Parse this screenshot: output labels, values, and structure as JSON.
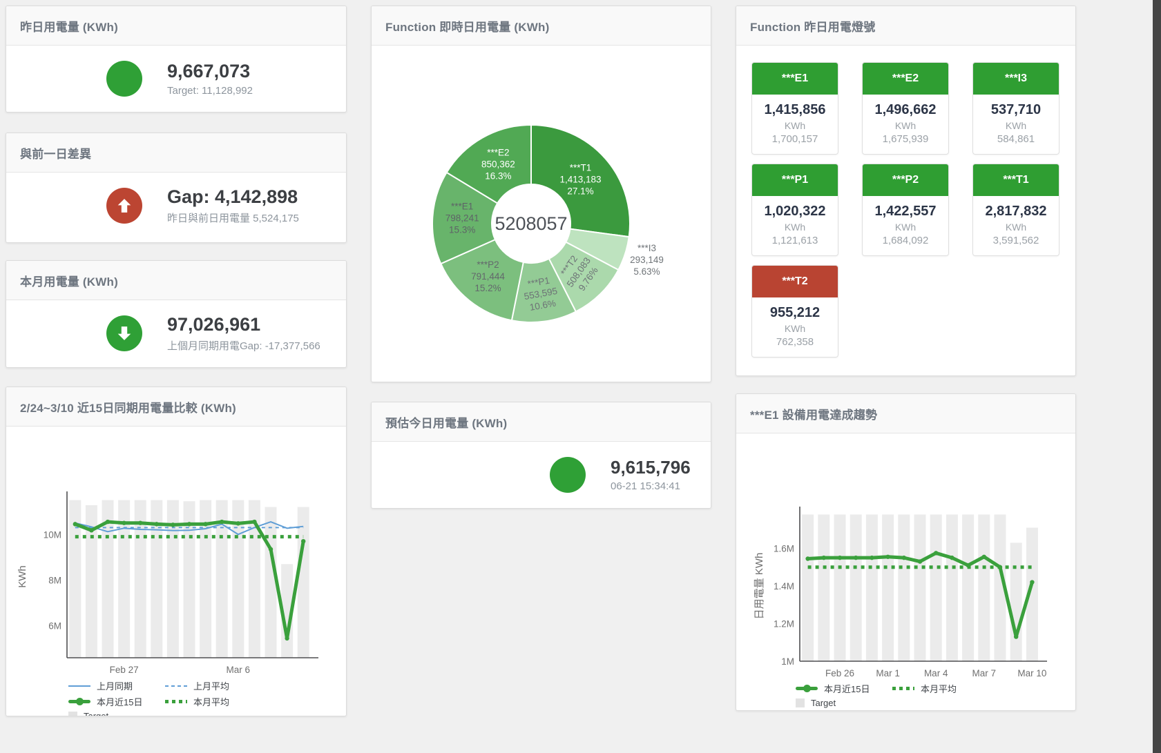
{
  "panels": {
    "yesterday_usage": {
      "title": "昨日用電量 (KWh)",
      "value": "9,667,073",
      "subtitle": "Target: 11,128,992",
      "icon": "green-circle",
      "icon_color": "#2fa036"
    },
    "prev_day_gap": {
      "title": "與前一日差異",
      "value": "Gap: 4,142,898",
      "subtitle": "昨日與前日用電量 5,524,175",
      "icon": "red-circle-up-arrow",
      "icon_color": "#bc4532"
    },
    "month_usage": {
      "title": "本月用電量 (KWh)",
      "value": "97,026,961",
      "subtitle": "上個月同期用電Gap: -17,377,566",
      "icon": "green-circle-down-arrow",
      "icon_color": "#2fa036"
    },
    "today_estimate": {
      "title": "預估今日用電量 (KWh)",
      "value": "9,615,796",
      "subtitle": "06-21 15:34:41",
      "icon": "green-circle",
      "icon_color": "#2fa036"
    },
    "realtime_donut": {
      "title": "Function 即時日用電量 (KWh)"
    },
    "lights": {
      "title": "Function 昨日用電燈號",
      "unit_label": "KWh",
      "green": "#2f9e32",
      "red": "#b94432",
      "tiles": [
        {
          "name": "***E1",
          "value": "1,415,856",
          "target": "1,700,157",
          "status": "green"
        },
        {
          "name": "***E2",
          "value": "1,496,662",
          "target": "1,675,939",
          "status": "green"
        },
        {
          "name": "***I3",
          "value": "537,710",
          "target": "584,861",
          "status": "green"
        },
        {
          "name": "***P1",
          "value": "1,020,322",
          "target": "1,121,613",
          "status": "green"
        },
        {
          "name": "***P2",
          "value": "1,422,557",
          "target": "1,684,092",
          "status": "green"
        },
        {
          "name": "***T1",
          "value": "2,817,832",
          "target": "3,591,562",
          "status": "green"
        },
        {
          "name": "***T2",
          "value": "955,212",
          "target": "762,358",
          "status": "red"
        }
      ]
    },
    "compare_15d": {
      "title": "2/24~3/10 近15日同期用電量比較 (KWh)"
    },
    "e1_trend": {
      "title": "***E1 設備用電達成趨勢"
    }
  },
  "chart_data": [
    {
      "id": "realtime_donut",
      "type": "pie",
      "title": "Function 即時日用電量 (KWh)",
      "center_total": "5208057",
      "slices": [
        {
          "label": "***T1",
          "value": 1413183,
          "display": "1,413,183",
          "pct": "27.1%",
          "color": "#3b9a3e",
          "text_color": "#ffffff",
          "label_r": 95,
          "rotate": 0,
          "outside": false
        },
        {
          "label": "***I3",
          "value": 293149,
          "display": "293,149",
          "pct": "5.63%",
          "color": "#bee3bf",
          "text_color": "#707579",
          "label_r": 176,
          "rotate": 0,
          "outside": true
        },
        {
          "label": "***T2",
          "value": 508083,
          "display": "508,083",
          "pct": "9.76%",
          "color": "#abd9ac",
          "text_color": "#6d7276",
          "label_r": 100,
          "rotate": -55,
          "outside": false
        },
        {
          "label": "***P1",
          "value": 553595,
          "display": "553,595",
          "pct": "10.6%",
          "color": "#93cb95",
          "text_color": "#6d7276",
          "label_r": 104,
          "rotate": -10,
          "outside": false
        },
        {
          "label": "***P2",
          "value": 791444,
          "display": "791,444",
          "pct": "15.2%",
          "color": "#7cbf7e",
          "text_color": "#63686c",
          "label_r": 100,
          "rotate": 0,
          "outside": false
        },
        {
          "label": "***E1",
          "value": 798241,
          "display": "798,241",
          "pct": "15.3%",
          "color": "#68b46b",
          "text_color": "#5e6367",
          "label_r": 100,
          "rotate": 0,
          "outside": false
        },
        {
          "label": "***E2",
          "value": 850362,
          "display": "850,362",
          "pct": "16.3%",
          "color": "#51a954",
          "text_color": "#ffffff",
          "label_r": 97,
          "rotate": 0,
          "outside": false
        }
      ]
    },
    {
      "id": "compare_15d",
      "type": "line+bar",
      "title": "2/24~3/10 近15日同期用電量比較 (KWh)",
      "ylabel": "KWh",
      "ylim": [
        4.6,
        11.7
      ],
      "yticks": [
        {
          "v": 6,
          "label": "6M"
        },
        {
          "v": 8,
          "label": "8M"
        },
        {
          "v": 10,
          "label": "10M"
        }
      ],
      "xticks": [
        {
          "index": 3,
          "label": "Feb 27"
        },
        {
          "index": 10,
          "label": "Mar 6"
        }
      ],
      "target": {
        "name": "Target",
        "color": "#ebebeb",
        "values": [
          11.5,
          11.28,
          11.5,
          11.5,
          11.5,
          11.5,
          11.5,
          11.45,
          11.5,
          11.5,
          11.5,
          11.5,
          11.2,
          8.7,
          11.2
        ]
      },
      "series": [
        {
          "name": "上月同期",
          "style": "thin",
          "color": "#5f9ed6",
          "values": [
            10.5,
            10.33,
            10.12,
            10.27,
            10.22,
            10.2,
            10.17,
            10.18,
            10.25,
            10.45,
            10.0,
            10.3,
            10.55,
            10.27,
            10.35
          ]
        },
        {
          "name": "上月平均",
          "style": "dashed",
          "color": "#5f9ed6",
          "values": [
            10.3,
            10.3,
            10.3,
            10.3,
            10.3,
            10.3,
            10.3,
            10.3,
            10.3,
            10.3,
            10.3,
            10.3,
            10.3,
            10.3,
            10.3
          ]
        },
        {
          "name": "本月近15日",
          "style": "thick",
          "color": "#3aa03c",
          "values": [
            10.45,
            10.18,
            10.55,
            10.5,
            10.5,
            10.45,
            10.42,
            10.45,
            10.45,
            10.55,
            10.48,
            10.55,
            9.35,
            5.45,
            9.7
          ]
        },
        {
          "name": "本月平均",
          "style": "dotted",
          "color": "#3aa03c",
          "values": [
            9.9,
            9.9,
            9.9,
            9.9,
            9.9,
            9.9,
            9.9,
            9.9,
            9.9,
            9.9,
            9.9,
            9.9,
            9.9,
            9.9,
            9.9
          ]
        }
      ],
      "legend_rows": [
        [
          {
            "label": "上月同期",
            "swatch": "thin",
            "color": "#5f9ed6"
          },
          {
            "label": "上月平均",
            "swatch": "dashed",
            "color": "#5f9ed6"
          }
        ],
        [
          {
            "label": "本月近15日",
            "swatch": "thick",
            "color": "#3aa03c"
          },
          {
            "label": "本月平均",
            "swatch": "dotted",
            "color": "#3aa03c"
          }
        ],
        [
          {
            "label": "Target",
            "swatch": "bar",
            "color": "#e2e2e2"
          }
        ]
      ]
    },
    {
      "id": "e1_trend",
      "type": "line+bar",
      "title": "***E1 設備用電達成趨勢",
      "ylabel": "日用電量 KWh",
      "ylim": [
        1.0,
        1.8
      ],
      "yticks": [
        {
          "v": 1.0,
          "label": "1M"
        },
        {
          "v": 1.2,
          "label": "1.2M"
        },
        {
          "v": 1.4,
          "label": "1.4M"
        },
        {
          "v": 1.6,
          "label": "1.6M"
        }
      ],
      "xticks": [
        {
          "index": 2,
          "label": "Feb 26"
        },
        {
          "index": 5,
          "label": "Mar 1"
        },
        {
          "index": 8,
          "label": "Mar 4"
        },
        {
          "index": 11,
          "label": "Mar 7"
        },
        {
          "index": 14,
          "label": "Mar 10"
        }
      ],
      "target": {
        "name": "Target",
        "color": "#ebebeb",
        "values": [
          1.78,
          1.78,
          1.78,
          1.78,
          1.78,
          1.78,
          1.78,
          1.78,
          1.78,
          1.78,
          1.78,
          1.78,
          1.78,
          1.63,
          1.71
        ]
      },
      "series": [
        {
          "name": "本月近15日",
          "style": "thick",
          "color": "#3aa03c",
          "values": [
            1.545,
            1.55,
            1.55,
            1.55,
            1.55,
            1.555,
            1.55,
            1.53,
            1.575,
            1.55,
            1.51,
            1.555,
            1.5,
            1.13,
            1.42
          ]
        },
        {
          "name": "本月平均",
          "style": "dotted",
          "color": "#3aa03c",
          "values": [
            1.5,
            1.5,
            1.5,
            1.5,
            1.5,
            1.5,
            1.5,
            1.5,
            1.5,
            1.5,
            1.5,
            1.5,
            1.5,
            1.5,
            1.5
          ]
        }
      ],
      "legend_rows": [
        [
          {
            "label": "本月近15日",
            "swatch": "thick",
            "color": "#3aa03c"
          },
          {
            "label": "本月平均",
            "swatch": "dotted",
            "color": "#3aa03c"
          }
        ],
        [
          {
            "label": "Target",
            "swatch": "bar",
            "color": "#e2e2e2"
          }
        ]
      ]
    }
  ]
}
